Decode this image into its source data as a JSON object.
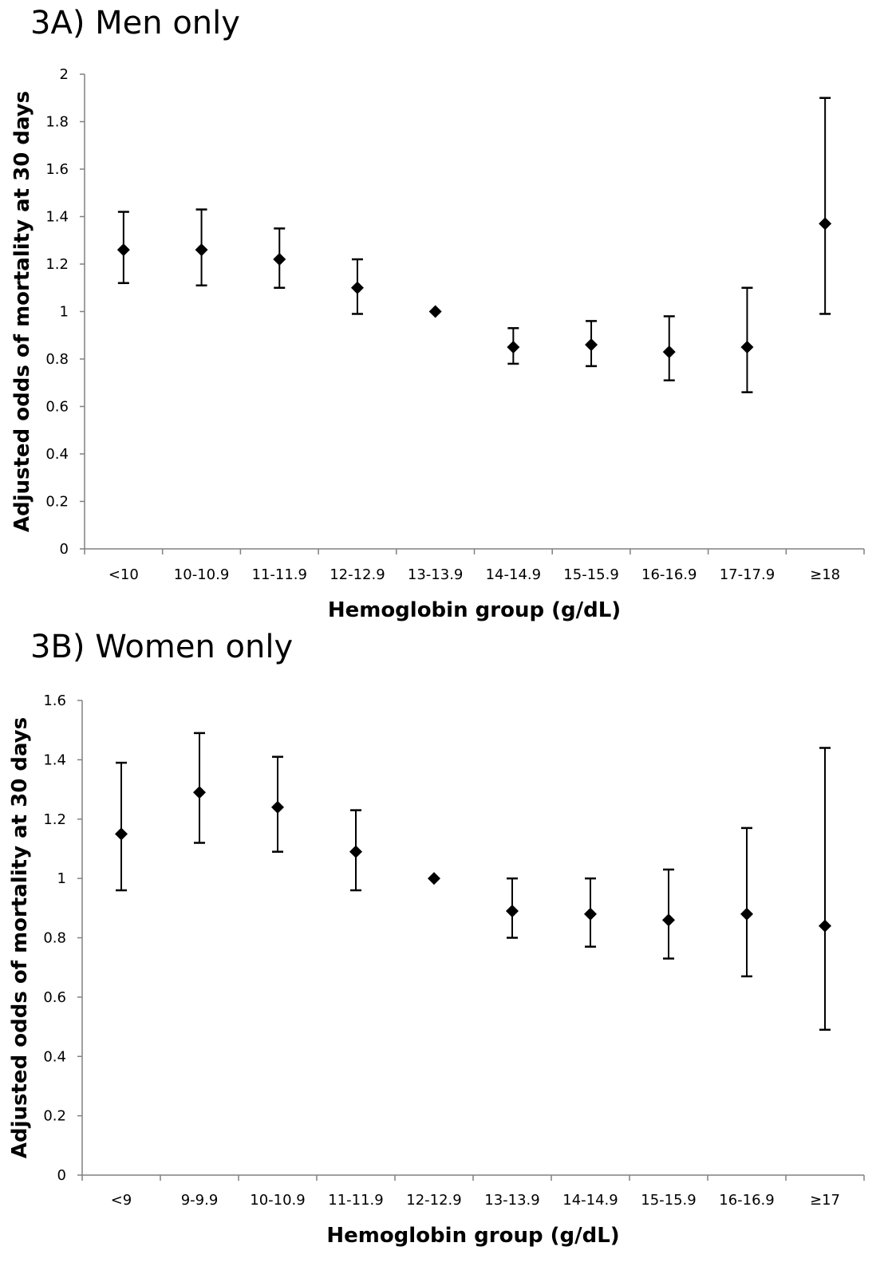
{
  "chart_data": [
    {
      "type": "scatter",
      "title": "3A) Men only",
      "xlabel": "Hemoglobin group (g/dL)",
      "ylabel": "Adjusted odds of mortality at 30 days",
      "ylim": [
        0,
        2
      ],
      "yticks": [
        "0",
        "0.2",
        "0.4",
        "0.6",
        "0.8",
        "1",
        "1.2",
        "1.4",
        "1.6",
        "1.8",
        "2"
      ],
      "grid": false,
      "legend": "none",
      "marker": "diamond",
      "color": "#000000",
      "categories": [
        "<10",
        "10-10.9",
        "11-11.9",
        "12-12.9",
        "13-13.9",
        "14-14.9",
        "15-15.9",
        "16-16.9",
        "17-17.9",
        "≥18"
      ],
      "values": [
        1.26,
        1.26,
        1.22,
        1.1,
        1.0,
        0.85,
        0.86,
        0.83,
        0.85,
        1.37
      ],
      "ci_lower": [
        1.12,
        1.11,
        1.1,
        0.99,
        null,
        0.78,
        0.77,
        0.71,
        0.66,
        0.99
      ],
      "ci_upper": [
        1.42,
        1.43,
        1.35,
        1.22,
        null,
        0.93,
        0.96,
        0.98,
        1.1,
        1.9
      ]
    },
    {
      "type": "scatter",
      "title": "3B) Women only",
      "xlabel": "Hemoglobin group (g/dL)",
      "ylabel": "Adjusted odds of mortality at 30 days",
      "ylim": [
        0,
        1.6
      ],
      "yticks": [
        "0",
        "0.2",
        "0.4",
        "0.6",
        "0.8",
        "1",
        "1.2",
        "1.4",
        "1.6"
      ],
      "grid": false,
      "legend": "none",
      "marker": "diamond",
      "color": "#000000",
      "categories": [
        "<9",
        "9-9.9",
        "10-10.9",
        "11-11.9",
        "12-12.9",
        "13-13.9",
        "14-14.9",
        "15-15.9",
        "16-16.9",
        "≥17"
      ],
      "values": [
        1.15,
        1.29,
        1.24,
        1.09,
        1.0,
        0.89,
        0.88,
        0.86,
        0.88,
        0.84
      ],
      "ci_lower": [
        0.96,
        1.12,
        1.09,
        0.96,
        null,
        0.8,
        0.77,
        0.73,
        0.67,
        0.49
      ],
      "ci_upper": [
        1.39,
        1.49,
        1.41,
        1.23,
        null,
        1.0,
        1.0,
        1.03,
        1.17,
        1.44
      ]
    }
  ]
}
